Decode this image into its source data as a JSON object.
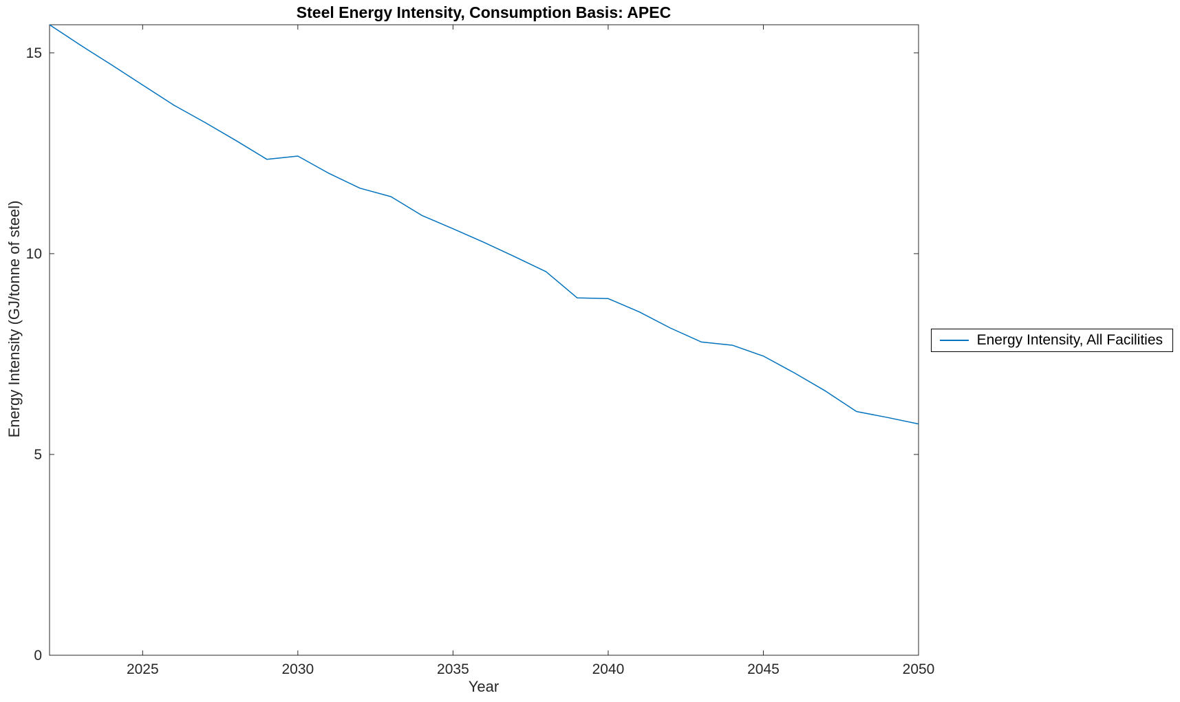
{
  "figure": {
    "background": "#ffffff"
  },
  "chart_data": {
    "type": "line",
    "title": "Steel Energy Intensity, Consumption Basis: APEC",
    "xlabel": "Year",
    "ylabel": "Energy Intensity (GJ/tonne of steel)",
    "xlim": [
      2022,
      2050
    ],
    "ylim": [
      0,
      15.7
    ],
    "xticks": [
      2025,
      2030,
      2035,
      2040,
      2045,
      2050
    ],
    "yticks": [
      0,
      5,
      10,
      15
    ],
    "grid": false,
    "box": true,
    "tick_direction": "in",
    "axis_color": "#262626",
    "legend": {
      "position": "outside-right",
      "border_color": "#000000",
      "entries": [
        "Energy Intensity, All Facilities"
      ]
    },
    "series": [
      {
        "name": "Energy Intensity, All Facilities",
        "color": "#0072BD",
        "line_width": 1.5,
        "x": [
          2022,
          2023,
          2024,
          2025,
          2026,
          2027,
          2028,
          2029,
          2030,
          2031,
          2032,
          2033,
          2034,
          2035,
          2036,
          2037,
          2038,
          2039,
          2040,
          2041,
          2042,
          2043,
          2044,
          2045,
          2046,
          2047,
          2048,
          2049,
          2050
        ],
        "values": [
          15.7,
          15.19,
          14.7,
          14.2,
          13.7,
          13.27,
          12.82,
          12.35,
          12.43,
          12.0,
          11.63,
          11.42,
          10.95,
          10.62,
          10.28,
          9.92,
          9.55,
          8.9,
          8.88,
          8.55,
          8.15,
          7.8,
          7.72,
          7.45,
          7.03,
          6.58,
          6.07,
          5.92,
          5.76
        ]
      }
    ]
  }
}
